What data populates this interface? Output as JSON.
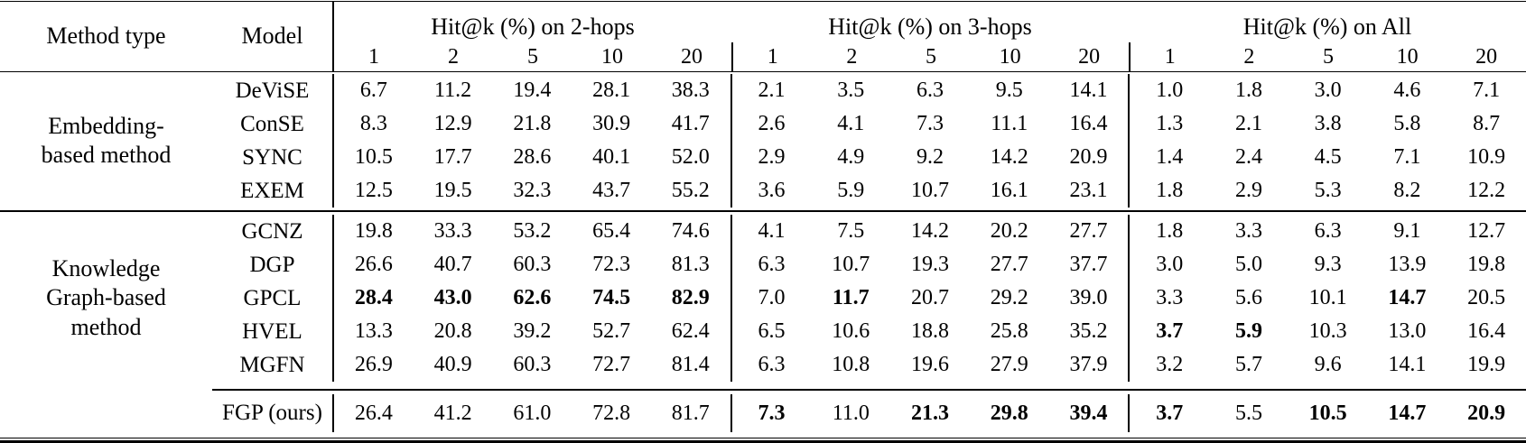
{
  "page": {
    "background": "#ffffff",
    "text_color": "#000000",
    "rule_color": "#000000"
  },
  "table": {
    "method_type_header": "Method type",
    "model_header": "Model",
    "groups": [
      {
        "title": "Hit@k (%) on 2-hops",
        "subcols": [
          "1",
          "2",
          "5",
          "10",
          "20"
        ]
      },
      {
        "title": "Hit@k (%) on 3-hops",
        "subcols": [
          "1",
          "2",
          "5",
          "10",
          "20"
        ]
      },
      {
        "title": "Hit@k (%) on All",
        "subcols": [
          "1",
          "2",
          "5",
          "10",
          "20"
        ]
      }
    ],
    "sections": [
      {
        "method_type_lines": [
          "Embedding-",
          "based method"
        ],
        "rows": [
          {
            "model": "DeViSE",
            "values": [
              "6.7",
              "11.2",
              "19.4",
              "28.1",
              "38.3",
              "2.1",
              "3.5",
              "6.3",
              "9.5",
              "14.1",
              "1.0",
              "1.8",
              "3.0",
              "4.6",
              "7.1"
            ],
            "bold": [
              0,
              0,
              0,
              0,
              0,
              0,
              0,
              0,
              0,
              0,
              0,
              0,
              0,
              0,
              0
            ]
          },
          {
            "model": "ConSE",
            "values": [
              "8.3",
              "12.9",
              "21.8",
              "30.9",
              "41.7",
              "2.6",
              "4.1",
              "7.3",
              "11.1",
              "16.4",
              "1.3",
              "2.1",
              "3.8",
              "5.8",
              "8.7"
            ],
            "bold": [
              0,
              0,
              0,
              0,
              0,
              0,
              0,
              0,
              0,
              0,
              0,
              0,
              0,
              0,
              0
            ]
          },
          {
            "model": "SYNC",
            "values": [
              "10.5",
              "17.7",
              "28.6",
              "40.1",
              "52.0",
              "2.9",
              "4.9",
              "9.2",
              "14.2",
              "20.9",
              "1.4",
              "2.4",
              "4.5",
              "7.1",
              "10.9"
            ],
            "bold": [
              0,
              0,
              0,
              0,
              0,
              0,
              0,
              0,
              0,
              0,
              0,
              0,
              0,
              0,
              0
            ]
          },
          {
            "model": "EXEM",
            "values": [
              "12.5",
              "19.5",
              "32.3",
              "43.7",
              "55.2",
              "3.6",
              "5.9",
              "10.7",
              "16.1",
              "23.1",
              "1.8",
              "2.9",
              "5.3",
              "8.2",
              "12.2"
            ],
            "bold": [
              0,
              0,
              0,
              0,
              0,
              0,
              0,
              0,
              0,
              0,
              0,
              0,
              0,
              0,
              0
            ]
          }
        ]
      },
      {
        "method_type_lines": [
          "Knowledge",
          "Graph-based",
          "method"
        ],
        "rows": [
          {
            "model": "GCNZ",
            "values": [
              "19.8",
              "33.3",
              "53.2",
              "65.4",
              "74.6",
              "4.1",
              "7.5",
              "14.2",
              "20.2",
              "27.7",
              "1.8",
              "3.3",
              "6.3",
              "9.1",
              "12.7"
            ],
            "bold": [
              0,
              0,
              0,
              0,
              0,
              0,
              0,
              0,
              0,
              0,
              0,
              0,
              0,
              0,
              0
            ]
          },
          {
            "model": "DGP",
            "values": [
              "26.6",
              "40.7",
              "60.3",
              "72.3",
              "81.3",
              "6.3",
              "10.7",
              "19.3",
              "27.7",
              "37.7",
              "3.0",
              "5.0",
              "9.3",
              "13.9",
              "19.8"
            ],
            "bold": [
              0,
              0,
              0,
              0,
              0,
              0,
              0,
              0,
              0,
              0,
              0,
              0,
              0,
              0,
              0
            ]
          },
          {
            "model": "GPCL",
            "values": [
              "28.4",
              "43.0",
              "62.6",
              "74.5",
              "82.9",
              "7.0",
              "11.7",
              "20.7",
              "29.2",
              "39.0",
              "3.3",
              "5.6",
              "10.1",
              "14.7",
              "20.5"
            ],
            "bold": [
              1,
              1,
              1,
              1,
              1,
              0,
              1,
              0,
              0,
              0,
              0,
              0,
              0,
              1,
              0
            ]
          },
          {
            "model": "HVEL",
            "values": [
              "13.3",
              "20.8",
              "39.2",
              "52.7",
              "62.4",
              "6.5",
              "10.6",
              "18.8",
              "25.8",
              "35.2",
              "3.7",
              "5.9",
              "10.3",
              "13.0",
              "16.4"
            ],
            "bold": [
              0,
              0,
              0,
              0,
              0,
              0,
              0,
              0,
              0,
              0,
              1,
              1,
              0,
              0,
              0
            ]
          },
          {
            "model": "MGFN",
            "values": [
              "26.9",
              "40.9",
              "60.3",
              "72.7",
              "81.4",
              "6.3",
              "10.8",
              "19.6",
              "27.9",
              "37.9",
              "3.2",
              "5.7",
              "9.6",
              "14.1",
              "19.9"
            ],
            "bold": [
              0,
              0,
              0,
              0,
              0,
              0,
              0,
              0,
              0,
              0,
              0,
              0,
              0,
              0,
              0
            ]
          }
        ]
      }
    ],
    "final_row": {
      "model": "FGP (ours)",
      "values": [
        "26.4",
        "41.2",
        "61.0",
        "72.8",
        "81.7",
        "7.3",
        "11.0",
        "21.3",
        "29.8",
        "39.4",
        "3.7",
        "5.5",
        "10.5",
        "14.7",
        "20.9"
      ],
      "bold": [
        0,
        0,
        0,
        0,
        0,
        1,
        0,
        1,
        1,
        1,
        1,
        0,
        1,
        1,
        1
      ]
    }
  }
}
